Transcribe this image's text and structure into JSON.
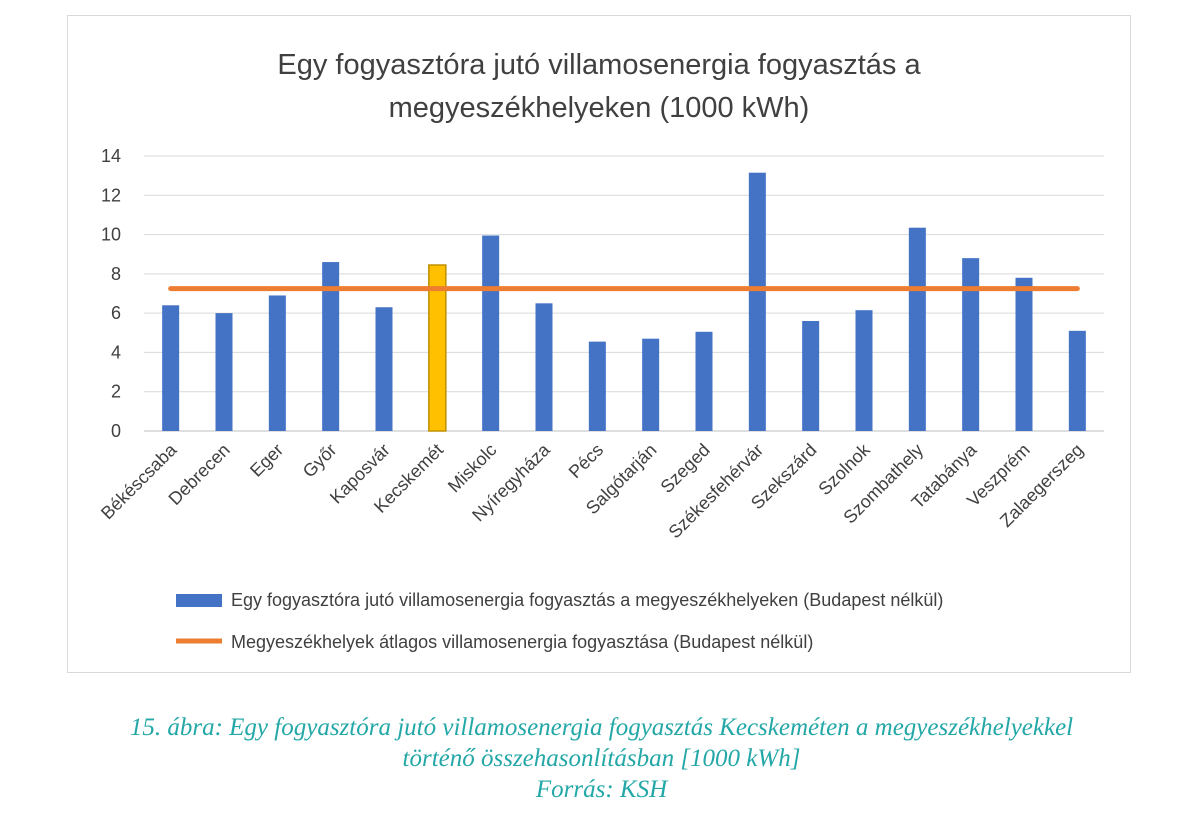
{
  "chart_data": {
    "type": "bar",
    "title_lines": [
      "Egy fogyasztóra jutó villamosenergia fogyasztás a",
      "megyeszékhelyeken (1000 kWh)"
    ],
    "categories": [
      "Békéscsaba",
      "Debrecen",
      "Eger",
      "Győr",
      "Kaposvár",
      "Kecskemét",
      "Miskolc",
      "Nyíregyháza",
      "Pécs",
      "Salgótarján",
      "Szeged",
      "Székesfehérvár",
      "Szekszárd",
      "Szolnok",
      "Szombathely",
      "Tatabánya",
      "Veszprém",
      "Zalaegerszeg"
    ],
    "series": [
      {
        "name": "Egy fogyasztóra jutó villamosenergia fogyasztás a megyeszékhelyeken (Budapest nélkül)",
        "type": "bar",
        "color": "#4472c4",
        "values": [
          6.4,
          6.0,
          6.9,
          8.6,
          6.3,
          8.45,
          9.95,
          6.5,
          4.55,
          4.7,
          5.05,
          13.15,
          5.6,
          6.15,
          10.35,
          8.8,
          7.8,
          5.1
        ]
      },
      {
        "name": "Megyeszékhelyek átlagos villamosenergia fogyasztása (Budapest nélkül)",
        "type": "line",
        "color": "#ed7d31",
        "value": 7.25
      }
    ],
    "highlight": {
      "category": "Kecskemét",
      "fill": "#ffc000",
      "stroke": "#bf9000"
    },
    "yticks": [
      0,
      2,
      4,
      6,
      8,
      10,
      12,
      14
    ],
    "ylim": [
      0,
      14
    ],
    "grid": true,
    "legend_position": "bottom"
  },
  "caption": {
    "lines": [
      "15. ábra: Egy fogyasztóra jutó villamosenergia fogyasztás Kecskeméten a megyeszékhelyekkel",
      "történő összehasonlításban [1000 kWh]",
      "Forrás: KSH"
    ],
    "color": "#23a7a7"
  }
}
